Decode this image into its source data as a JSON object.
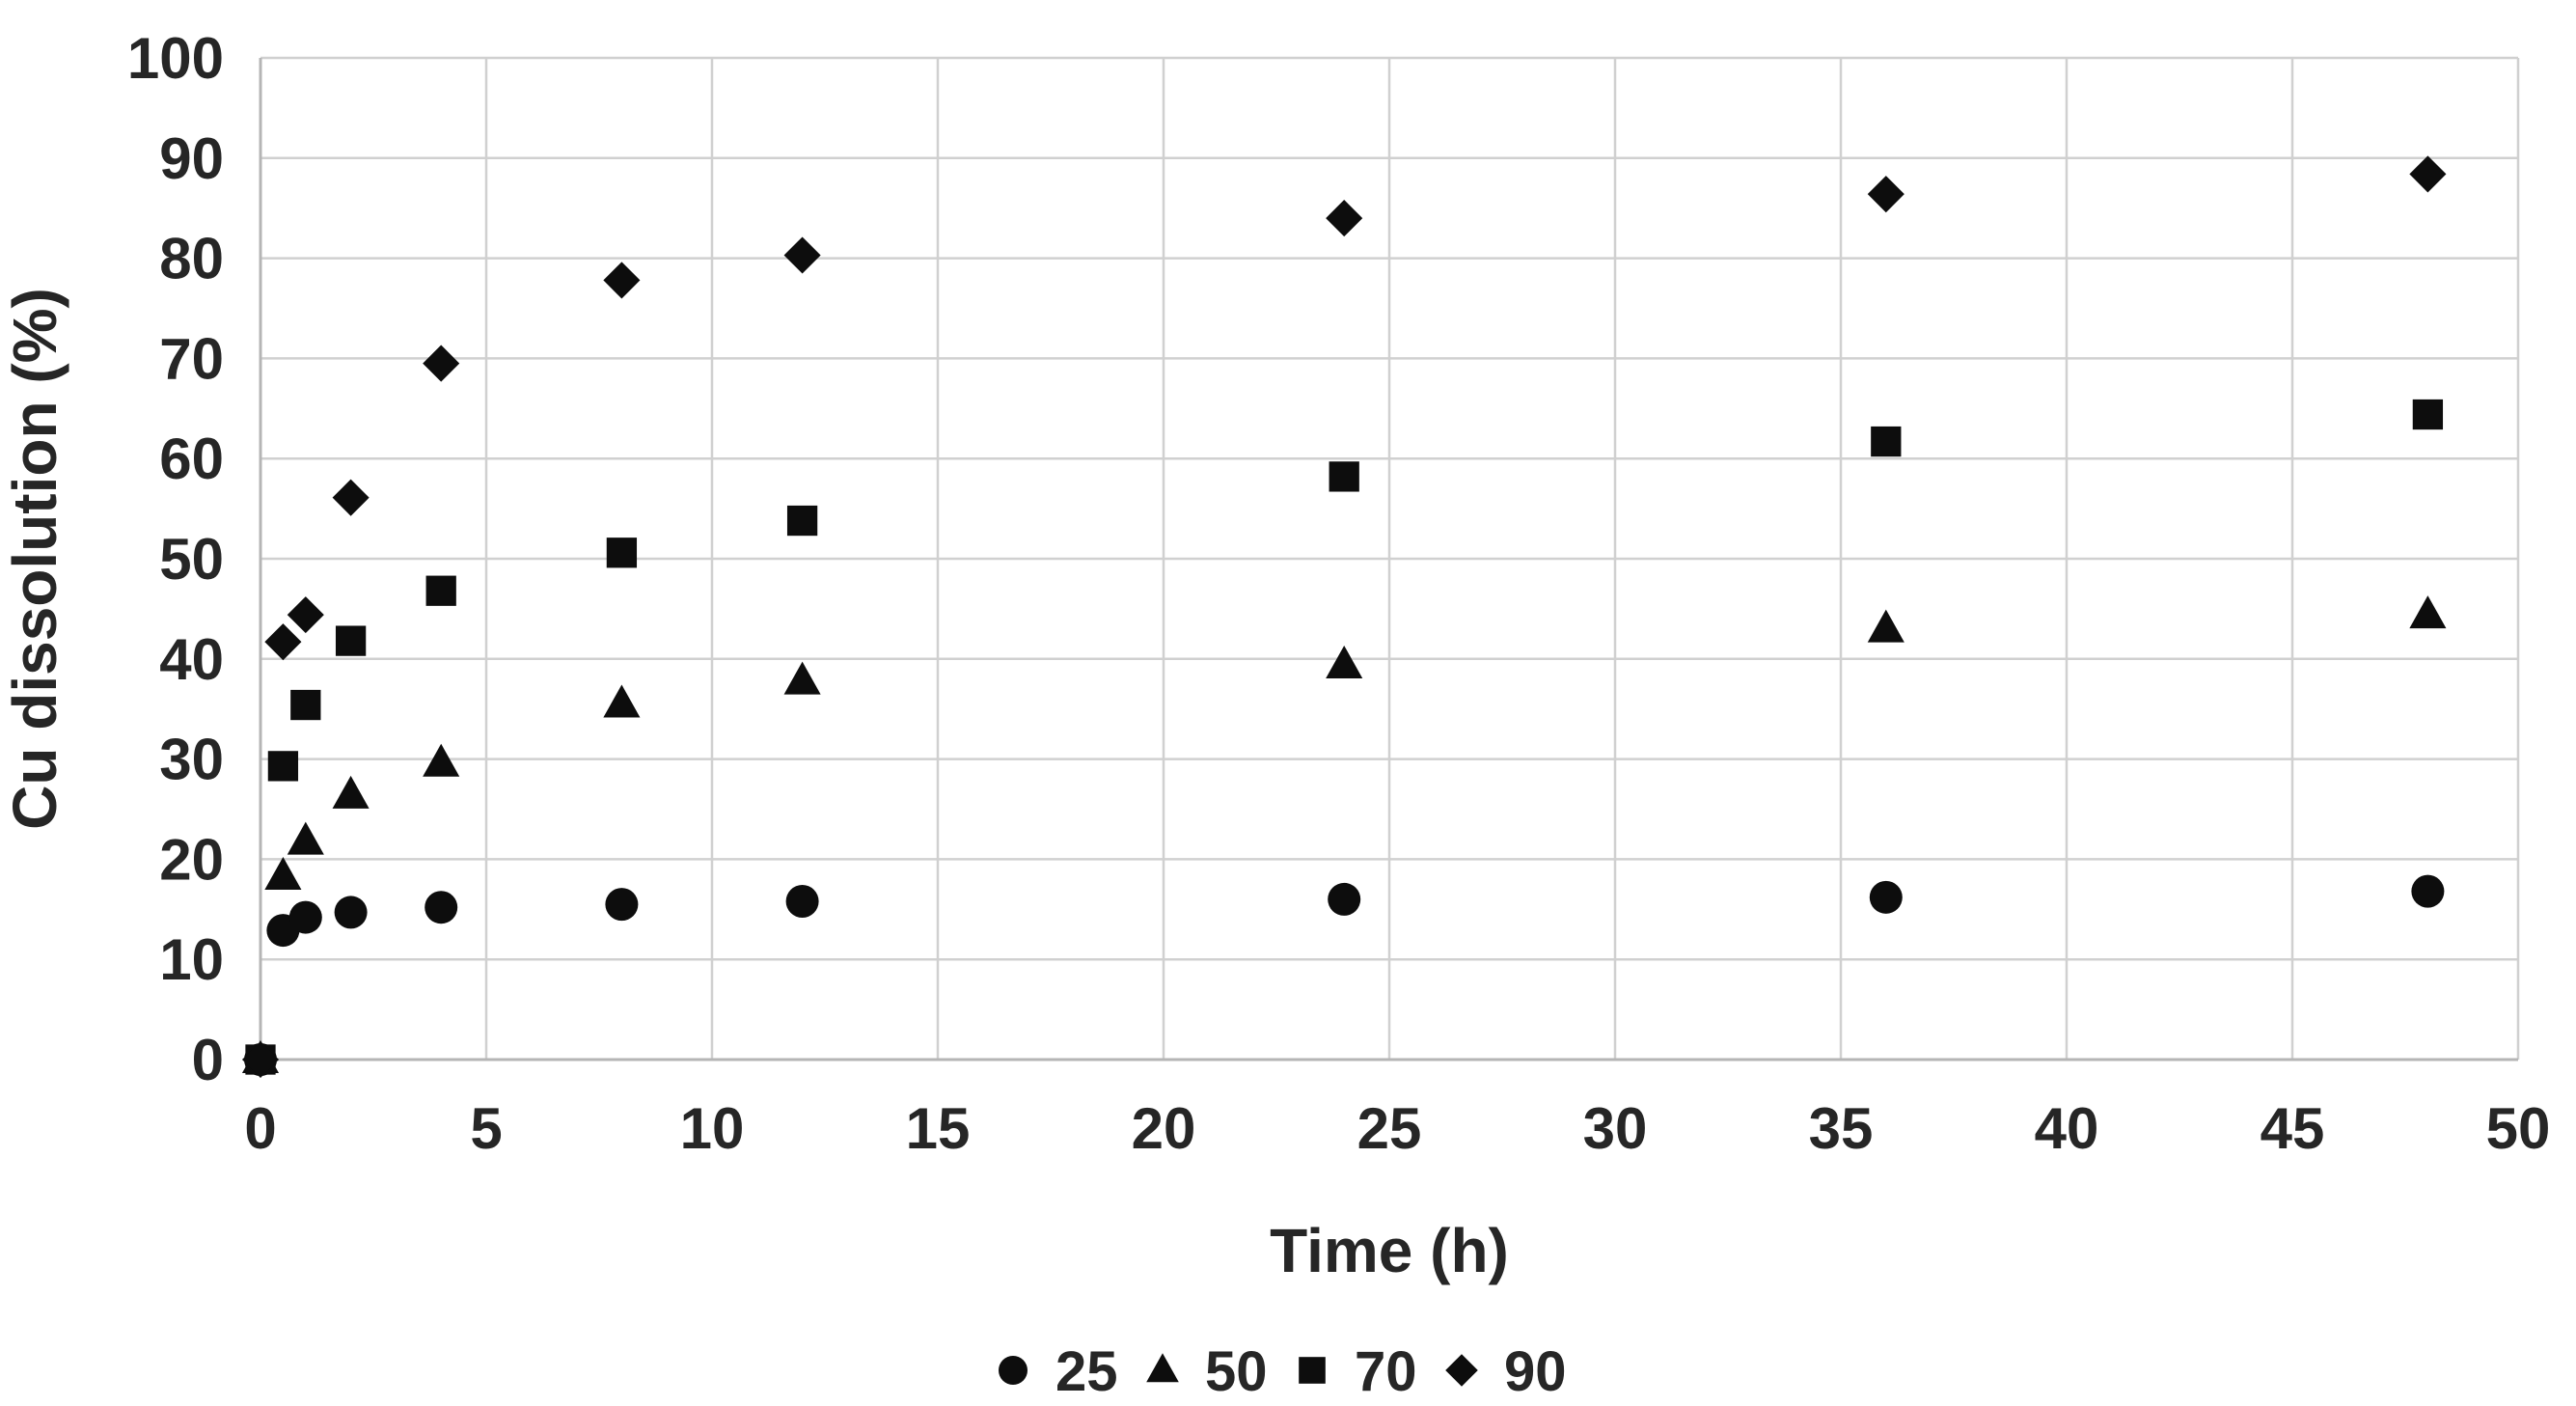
{
  "figure": {
    "background": "#ffffff"
  },
  "chart_data": {
    "type": "scatter",
    "title": "",
    "xlabel": "Time (h)",
    "ylabel": "Cu dissolution (%)",
    "xlim": [
      0,
      50
    ],
    "ylim": [
      0,
      100
    ],
    "x_ticks": [
      0,
      5,
      10,
      15,
      20,
      25,
      30,
      35,
      40,
      45,
      50
    ],
    "y_ticks": [
      0,
      10,
      20,
      30,
      40,
      50,
      60,
      70,
      80,
      90,
      100
    ],
    "grid": true,
    "legend_position": "bottom-center",
    "x": [
      0,
      0.5,
      1,
      2,
      4,
      8,
      12,
      24,
      36,
      48
    ],
    "series": [
      {
        "name": "25",
        "marker": "circle",
        "values": [
          0,
          12.9,
          14.2,
          14.7,
          15.2,
          15.5,
          15.8,
          16.0,
          16.2,
          16.8
        ]
      },
      {
        "name": "50",
        "marker": "triangle",
        "values": [
          0,
          18.3,
          21.8,
          26.4,
          29.6,
          35.5,
          37.8,
          39.4,
          43.0,
          44.4
        ]
      },
      {
        "name": "70",
        "marker": "square",
        "values": [
          0,
          29.3,
          35.4,
          41.8,
          46.8,
          50.6,
          53.8,
          58.2,
          61.7,
          64.4
        ]
      },
      {
        "name": "90",
        "marker": "diamond",
        "values": [
          0,
          41.7,
          44.4,
          56.1,
          69.5,
          77.8,
          80.3,
          84.0,
          86.4,
          88.4
        ]
      }
    ],
    "colors": {
      "marker": "#0d0d0d",
      "grid": "#d0d0d0",
      "axis": "#b5b5b5",
      "text": "#262626",
      "background": "#ffffff"
    }
  }
}
